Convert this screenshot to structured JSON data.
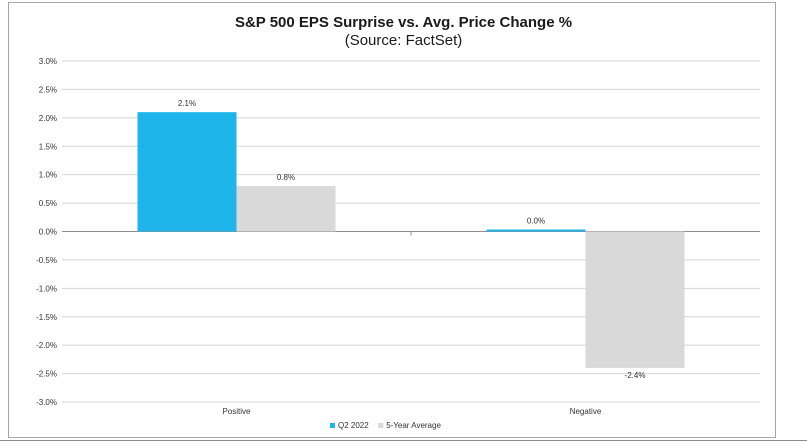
{
  "chart_data": {
    "type": "bar",
    "title": "S&P 500 EPS Surprise vs. Avg. Price Change %",
    "subtitle": "(Source: FactSet)",
    "categories": [
      "Positive",
      "Negative"
    ],
    "series": [
      {
        "name": "Q2 2022",
        "color": "#1fb4ea",
        "values": [
          2.1,
          0.0
        ],
        "labels": [
          "2.1%",
          "0.0%"
        ]
      },
      {
        "name": "5-Year Average",
        "color": "#d9d9d9",
        "values": [
          0.8,
          -2.4
        ],
        "labels": [
          "0.8%",
          "-2.4%"
        ]
      }
    ],
    "ylim": [
      -3.0,
      3.0
    ],
    "yticks": [
      3.0,
      2.5,
      2.0,
      1.5,
      1.0,
      0.5,
      0.0,
      -0.5,
      -1.0,
      -1.5,
      -2.0,
      -2.5,
      -3.0
    ],
    "ytick_labels": [
      "3.0%",
      "2.5%",
      "2.0%",
      "1.5%",
      "1.0%",
      "0.5%",
      "0.0%",
      "-0.5%",
      "-1.0%",
      "-1.5%",
      "-2.0%",
      "-2.5%",
      "-3.0%"
    ],
    "grid": true,
    "legend": "bottom"
  }
}
